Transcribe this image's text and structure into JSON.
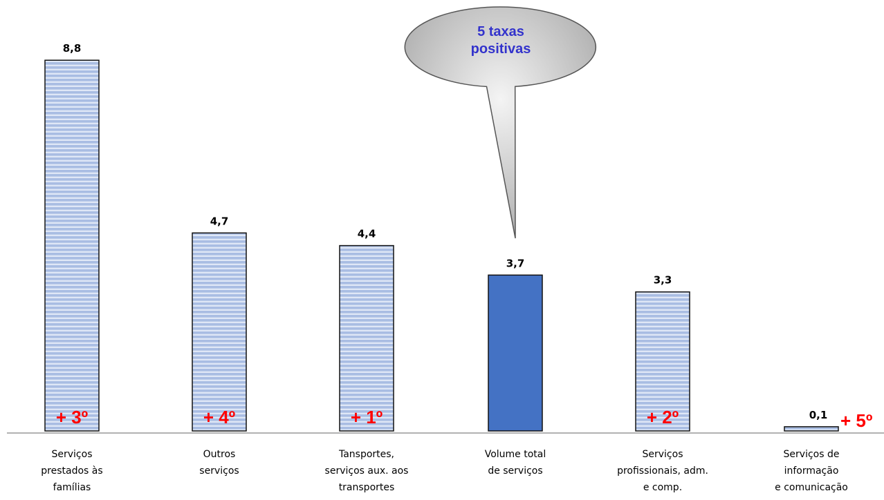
{
  "chart_data": {
    "type": "bar",
    "categories": [
      [
        "Serviços",
        "prestados às",
        "famílias"
      ],
      [
        "Outros",
        "serviços"
      ],
      [
        "Tansportes,",
        "serviços aux. aos",
        "transportes"
      ],
      [
        "Volume total",
        "de serviços"
      ],
      [
        "Serviços",
        "profissionais, adm.",
        "e comp."
      ],
      [
        "Serviços de",
        "informação",
        "e comunicação"
      ]
    ],
    "values": [
      8.8,
      4.7,
      4.4,
      3.7,
      3.3,
      0.1
    ],
    "value_labels": [
      "8,8",
      "4,7",
      "4,4",
      "3,7",
      "3,3",
      "0,1"
    ],
    "rank_labels": [
      "+ 3º",
      "+ 4º",
      "+ 1º",
      "",
      "+ 2º",
      "+ 5º"
    ],
    "highlight_index": 3,
    "colors": {
      "striped_bar": "#a9bde3",
      "stripe_light": "#dfe7f6",
      "highlight_bar": "#4472c4",
      "rank": "#ff0000",
      "bubble_text": "#3333cc"
    },
    "ylim": [
      0,
      10
    ],
    "grid": false,
    "annotation": {
      "text": [
        "5 taxas",
        "positivas"
      ],
      "target_index": 3
    }
  }
}
